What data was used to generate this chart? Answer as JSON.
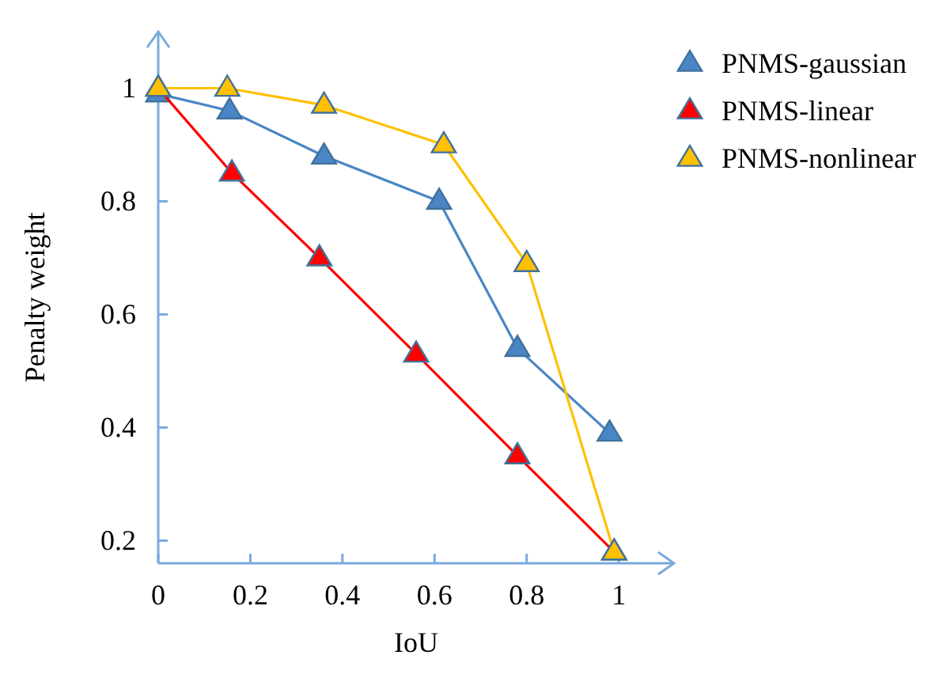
{
  "chart_data": {
    "type": "line",
    "xlabel": "IoU",
    "ylabel": "Penalty weight",
    "xlim": [
      0,
      1.12
    ],
    "ylim": [
      0.16,
      1.1
    ],
    "xticks": [
      0,
      0.2,
      0.4,
      0.6,
      0.8,
      1
    ],
    "yticks": [
      0.2,
      0.4,
      0.6,
      0.8,
      1
    ],
    "grid": false,
    "legend": "top right",
    "marker": "triangle",
    "line_style": "solid",
    "series": [
      {
        "name": "PNMS-gaussian",
        "color": "#4a86c5",
        "x": [
          0,
          0.155,
          0.36,
          0.61,
          0.78,
          0.98
        ],
        "values": [
          0.99,
          0.96,
          0.88,
          0.8,
          0.54,
          0.39
        ]
      },
      {
        "name": "PNMS-linear",
        "color": "#ff0000",
        "x": [
          0,
          0.16,
          0.35,
          0.56,
          0.78,
          0.99
        ],
        "values": [
          1,
          0.85,
          0.7,
          0.53,
          0.35,
          0.18
        ]
      },
      {
        "name": "PNMS-nonlinear",
        "color": "#ffc000",
        "x": [
          0,
          0.15,
          0.36,
          0.62,
          0.8,
          0.99
        ],
        "values": [
          1,
          1,
          0.97,
          0.9,
          0.69,
          0.18
        ]
      }
    ]
  }
}
